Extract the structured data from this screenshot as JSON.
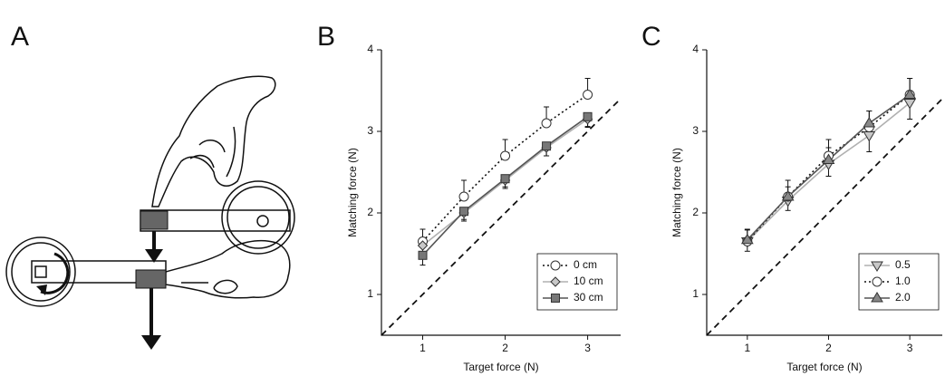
{
  "panel_a": {
    "label": "A"
  },
  "chart_data": [
    {
      "type": "line",
      "panel": "B",
      "xlabel": "Target force (N)",
      "ylabel": "Matching force (N)",
      "x": [
        1,
        1.5,
        2,
        2.5,
        3
      ],
      "xlim": [
        0.5,
        3.4
      ],
      "ylim": [
        0.5,
        4
      ],
      "xticks": [
        1,
        2,
        3
      ],
      "yticks": [
        1,
        2,
        3,
        4
      ],
      "identity_line": true,
      "legend": "lower right",
      "series": [
        {
          "name": "0 cm",
          "color": "#ffffff",
          "line_color": "#111111",
          "line_style": "dotted",
          "marker": "circle",
          "error_direction": "up",
          "values": [
            1.65,
            2.2,
            2.7,
            3.1,
            3.45
          ],
          "errors": [
            0.15,
            0.2,
            0.2,
            0.2,
            0.2
          ]
        },
        {
          "name": "10 cm",
          "color": "#c8c8c8",
          "line_color": "#b0b0b0",
          "line_style": "solid",
          "marker": "diamond",
          "error_direction": "down",
          "values": [
            1.6,
            2.0,
            2.4,
            2.8,
            3.15
          ],
          "errors": [
            0.1,
            0.1,
            0.1,
            0.1,
            0.1
          ]
        },
        {
          "name": "30 cm",
          "color": "#777777",
          "line_color": "#555555",
          "line_style": "solid",
          "marker": "square",
          "error_direction": "down",
          "values": [
            1.48,
            2.02,
            2.42,
            2.82,
            3.18
          ],
          "errors": [
            0.12,
            0.1,
            0.1,
            0.12,
            0.12
          ]
        }
      ]
    },
    {
      "type": "line",
      "panel": "C",
      "xlabel": "Target force (N)",
      "ylabel": "Matching force (N)",
      "x": [
        1,
        1.5,
        2,
        2.5,
        3
      ],
      "xlim": [
        0.5,
        3.4
      ],
      "ylim": [
        0.5,
        4
      ],
      "xticks": [
        1,
        2,
        3
      ],
      "yticks": [
        1,
        2,
        3,
        4
      ],
      "identity_line": true,
      "legend": "lower right",
      "series": [
        {
          "name": "0.5",
          "color": "#c8c8c8",
          "line_color": "#b0b0b0",
          "line_style": "solid",
          "marker": "triangle-down",
          "error_direction": "down",
          "values": [
            1.65,
            2.15,
            2.6,
            2.95,
            3.35
          ],
          "errors": [
            0.12,
            0.12,
            0.15,
            0.2,
            0.2
          ]
        },
        {
          "name": "1.0",
          "color": "#ffffff",
          "line_color": "#111111",
          "line_style": "dotted",
          "marker": "circle",
          "error_direction": "up",
          "values": [
            1.65,
            2.2,
            2.7,
            3.05,
            3.45
          ],
          "errors": [
            0.15,
            0.2,
            0.2,
            0.2,
            0.2
          ]
        },
        {
          "name": "2.0",
          "color": "#888888",
          "line_color": "#555555",
          "line_style": "solid",
          "marker": "triangle-up",
          "error_direction": "up",
          "values": [
            1.67,
            2.2,
            2.65,
            3.1,
            3.45
          ],
          "errors": [
            0.12,
            0.12,
            0.15,
            0.15,
            0.2
          ]
        }
      ]
    }
  ]
}
